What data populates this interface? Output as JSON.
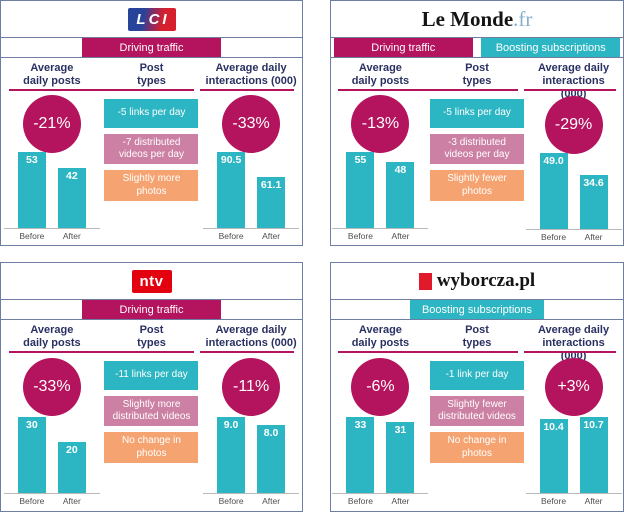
{
  "colors": {
    "magenta": "#b4135d",
    "teal": "#2cb5c2",
    "pink": "#cc80a3",
    "orange": "#f5a471",
    "navy_text": "#2a3162",
    "panel_border": "#6f7da3",
    "axis_gray": "#4f4f4f",
    "lci_blue": "#27449a",
    "brand_red": "#e3000f"
  },
  "shared": {
    "col_headers": [
      "Average\ndaily posts",
      "Post\ntypes",
      "Average daily\ninteractions (000)"
    ],
    "bar_categories": [
      "Before",
      "After"
    ],
    "tags": {
      "traffic": {
        "label": "Driving traffic",
        "color": "#b4135d"
      },
      "subs": {
        "label": "Boosting subscriptions",
        "color": "#2cb5c2"
      }
    }
  },
  "chart_data": [
    {
      "type": "bar",
      "brand": "LCI",
      "logo": {
        "kind": "lci",
        "text": "LCI"
      },
      "tags": [
        "traffic"
      ],
      "posts": {
        "change": "-21%",
        "categories": [
          "Before",
          "After"
        ],
        "values": [
          53,
          42
        ],
        "labels": [
          "53",
          "42"
        ]
      },
      "interactions": {
        "change": "-33%",
        "categories": [
          "Before",
          "After"
        ],
        "values": [
          90.5,
          61.1
        ],
        "labels": [
          "90.5",
          "61.1"
        ]
      },
      "post_types": [
        {
          "color": "teal",
          "text": "-5 links per day"
        },
        {
          "color": "pink",
          "text": "-7 distributed videos per day"
        },
        {
          "color": "orange",
          "text": "Slightly more photos"
        }
      ]
    },
    {
      "type": "bar",
      "brand": "Le Monde.fr",
      "logo": {
        "kind": "lemonde",
        "text": "Le Monde",
        "suffix": ".fr"
      },
      "tags": [
        "traffic",
        "subs"
      ],
      "posts": {
        "change": "-13%",
        "categories": [
          "Before",
          "After"
        ],
        "values": [
          55,
          48
        ],
        "labels": [
          "55",
          "48"
        ]
      },
      "interactions": {
        "change": "-29%",
        "categories": [
          "Before",
          "After"
        ],
        "values": [
          49.0,
          34.6
        ],
        "labels": [
          "49.0",
          "34.6"
        ]
      },
      "post_types": [
        {
          "color": "teal",
          "text": "-5 links per day"
        },
        {
          "color": "pink",
          "text": "-3 distributed videos per day"
        },
        {
          "color": "orange",
          "text": "Slightly fewer photos"
        }
      ]
    },
    {
      "type": "bar",
      "brand": "ntv",
      "logo": {
        "kind": "ntv",
        "text": "ntv"
      },
      "tags": [
        "traffic"
      ],
      "posts": {
        "change": "-33%",
        "categories": [
          "Before",
          "After"
        ],
        "values": [
          30,
          20
        ],
        "labels": [
          "30",
          "20"
        ]
      },
      "interactions": {
        "change": "-11%",
        "categories": [
          "Before",
          "After"
        ],
        "values": [
          9.0,
          8.0
        ],
        "labels": [
          "9.0",
          "8.0"
        ]
      },
      "post_types": [
        {
          "color": "teal",
          "text": "-11 links per day"
        },
        {
          "color": "pink",
          "text": "Slightly more distributed videos"
        },
        {
          "color": "orange",
          "text": "No change in photos"
        }
      ]
    },
    {
      "type": "bar",
      "brand": "wyborcza.pl",
      "logo": {
        "kind": "wyborcza",
        "text": "wyborcza.pl"
      },
      "tags": [
        "subs"
      ],
      "posts": {
        "change": "-6%",
        "categories": [
          "Before",
          "After"
        ],
        "values": [
          33,
          31
        ],
        "labels": [
          "33",
          "31"
        ]
      },
      "interactions": {
        "change": "+3%",
        "categories": [
          "Before",
          "After"
        ],
        "values": [
          10.4,
          10.7
        ],
        "labels": [
          "10.4",
          "10.7"
        ]
      },
      "post_types": [
        {
          "color": "teal",
          "text": "-1 link per day"
        },
        {
          "color": "pink",
          "text": "Slightly fewer distributed videos"
        },
        {
          "color": "orange",
          "text": "No change in photos"
        }
      ]
    }
  ]
}
